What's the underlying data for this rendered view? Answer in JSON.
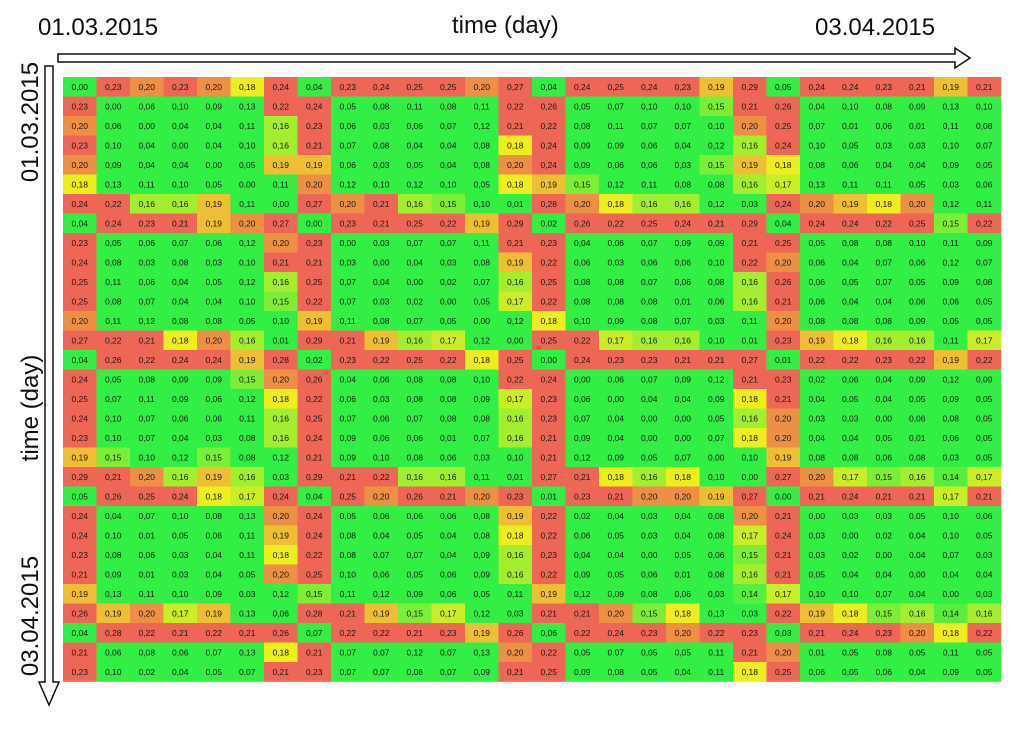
{
  "top_axis": {
    "start_label": "01.03.2015",
    "end_label": "03.04.2015",
    "title": "time (day)"
  },
  "left_axis": {
    "start_label": "01.03.2015",
    "end_label": "03.04.2015",
    "title": "time (day)"
  },
  "colors": {
    "low": "#33ee44",
    "mid": "#eeee22",
    "high": "#ee6655",
    "axis": "#111111"
  },
  "chart_data": {
    "type": "heatmap",
    "x_label": "time (day)",
    "y_label": "time (day)",
    "x_range": [
      "01.03.2015",
      "03.04.2015"
    ],
    "y_range": [
      "01.03.2015",
      "03.04.2015"
    ],
    "color_scale": {
      "min": 0.0,
      "max": 0.29
    },
    "cols": 28,
    "rows": 31,
    "values": [
      [
        "0,00",
        "0,23",
        "0,20",
        "0,23",
        "0,20",
        "0,18",
        "0,24",
        "0,04",
        "0,23",
        "0,24",
        "0,25",
        "0,25",
        "0,20",
        "0,27",
        "0,04",
        "0,24",
        "0,25",
        "0,24",
        "0,23",
        "0,19",
        "0,29",
        "0,05",
        "0,24",
        "0,24",
        "0,23",
        "0,21",
        "0,19",
        "0,21"
      ],
      [
        "0,23",
        "0,00",
        "0,06",
        "0,10",
        "0,09",
        "0,13",
        "0,22",
        "0,24",
        "0,05",
        "0,08",
        "0,11",
        "0,08",
        "0,11",
        "0,22",
        "0,26",
        "0,05",
        "0,07",
        "0,10",
        "0,10",
        "0,15",
        "0,21",
        "0,26",
        "0,04",
        "0,10",
        "0,08",
        "0,09",
        "0,13",
        "0,10"
      ],
      [
        "0,20",
        "0,06",
        "0,00",
        "0,04",
        "0,04",
        "0,11",
        "0,16",
        "0,23",
        "0,06",
        "0,03",
        "0,06",
        "0,07",
        "0,12",
        "0,21",
        "0,22",
        "0,08",
        "0,11",
        "0,07",
        "0,07",
        "0,10",
        "0,20",
        "0,25",
        "0,07",
        "0,01",
        "0,06",
        "0,01",
        "0,11",
        "0,08"
      ],
      [
        "0,23",
        "0,10",
        "0,04",
        "0,00",
        "0,04",
        "0,10",
        "0,16",
        "0,21",
        "0,07",
        "0,08",
        "0,04",
        "0,04",
        "0,08",
        "0,18",
        "0,24",
        "0,09",
        "0,09",
        "0,06",
        "0,04",
        "0,12",
        "0,16",
        "0,24",
        "0,10",
        "0,05",
        "0,03",
        "0,03",
        "0,10",
        "0,07"
      ],
      [
        "0,20",
        "0,09",
        "0,04",
        "0,04",
        "0,00",
        "0,05",
        "0,19",
        "0,19",
        "0,06",
        "0,03",
        "0,05",
        "0,04",
        "0,08",
        "0,20",
        "0,24",
        "0,09",
        "0,06",
        "0,06",
        "0,03",
        "0,15",
        "0,19",
        "0,18",
        "0,08",
        "0,06",
        "0,04",
        "0,04",
        "0,09",
        "0,05"
      ],
      [
        "0,18",
        "0,13",
        "0,11",
        "0,10",
        "0,05",
        "0,00",
        "0,11",
        "0,20",
        "0,12",
        "0,10",
        "0,12",
        "0,10",
        "0,05",
        "0,18",
        "0,19",
        "0,15",
        "0,12",
        "0,11",
        "0,08",
        "0,08",
        "0,16",
        "0,17",
        "0,13",
        "0,11",
        "0,11",
        "0,05",
        "0,03",
        "0,06"
      ],
      [
        "0,24",
        "0,22",
        "0,16",
        "0,16",
        "0,19",
        "0,11",
        "0,00",
        "0,27",
        "0,20",
        "0,21",
        "0,16",
        "0,15",
        "0,10",
        "0,01",
        "0,28",
        "0,20",
        "0,18",
        "0,16",
        "0,16",
        "0,12",
        "0,03",
        "0,24",
        "0,20",
        "0,19",
        "0,18",
        "0,20",
        "0,12",
        "0,11"
      ],
      [
        "0,04",
        "0,24",
        "0,23",
        "0,21",
        "0,19",
        "0,20",
        "0,27",
        "0,00",
        "0,23",
        "0,21",
        "0,25",
        "0,22",
        "0,19",
        "0,29",
        "0,02",
        "0,26",
        "0,22",
        "0,25",
        "0,24",
        "0,21",
        "0,29",
        "0,04",
        "0,24",
        "0,24",
        "0,22",
        "0,25",
        "0,15",
        "0,22"
      ],
      [
        "0,23",
        "0,05",
        "0,06",
        "0,07",
        "0,06",
        "0,12",
        "0,20",
        "0,23",
        "0,00",
        "0,03",
        "0,07",
        "0,07",
        "0,11",
        "0,21",
        "0,23",
        "0,04",
        "0,06",
        "0,07",
        "0,09",
        "0,09",
        "0,21",
        "0,25",
        "0,05",
        "0,08",
        "0,08",
        "0,10",
        "0,11",
        "0,09"
      ],
      [
        "0,24",
        "0,08",
        "0,03",
        "0,08",
        "0,03",
        "0,10",
        "0,21",
        "0,21",
        "0,03",
        "0,00",
        "0,04",
        "0,03",
        "0,08",
        "0,19",
        "0,22",
        "0,06",
        "0,03",
        "0,06",
        "0,06",
        "0,10",
        "0,22",
        "0,20",
        "0,06",
        "0,04",
        "0,07",
        "0,06",
        "0,12",
        "0,07"
      ],
      [
        "0,25",
        "0,11",
        "0,06",
        "0,04",
        "0,05",
        "0,12",
        "0,16",
        "0,25",
        "0,07",
        "0,04",
        "0,00",
        "0,02",
        "0,07",
        "0,16",
        "0,25",
        "0,08",
        "0,08",
        "0,07",
        "0,06",
        "0,08",
        "0,16",
        "0,26",
        "0,06",
        "0,05",
        "0,07",
        "0,05",
        "0,09",
        "0,08"
      ],
      [
        "0,25",
        "0,08",
        "0,07",
        "0,04",
        "0,04",
        "0,10",
        "0,15",
        "0,22",
        "0,07",
        "0,03",
        "0,02",
        "0,00",
        "0,05",
        "0,17",
        "0,22",
        "0,08",
        "0,08",
        "0,08",
        "0,01",
        "0,06",
        "0,16",
        "0,21",
        "0,06",
        "0,04",
        "0,04",
        "0,06",
        "0,06",
        "0,05"
      ],
      [
        "0,20",
        "0,11",
        "0,12",
        "0,08",
        "0,08",
        "0,05",
        "0,10",
        "0,19",
        "0,11",
        "0,08",
        "0,07",
        "0,05",
        "0,00",
        "0,12",
        "0,18",
        "0,10",
        "0,09",
        "0,08",
        "0,07",
        "0,03",
        "0,11",
        "0,20",
        "0,08",
        "0,08",
        "0,08",
        "0,09",
        "0,05",
        "0,05"
      ],
      [
        "0,27",
        "0,22",
        "0,21",
        "0,18",
        "0,20",
        "0,16",
        "0,01",
        "0,29",
        "0,21",
        "0,19",
        "0,16",
        "0,17",
        "0,12",
        "0,00",
        "0,25",
        "0,22",
        "0,17",
        "0,16",
        "0,16",
        "0,10",
        "0,01",
        "0,23",
        "0,19",
        "0,18",
        "0,16",
        "0,16",
        "0,11",
        "0,17"
      ],
      [
        "0,04",
        "0,26",
        "0,22",
        "0,24",
        "0,24",
        "0,19",
        "0,28",
        "0,02",
        "0,23",
        "0,22",
        "0,25",
        "0,22",
        "0,18",
        "0,25",
        "0,00",
        "0,24",
        "0,23",
        "0,23",
        "0,21",
        "0,21",
        "0,27",
        "0,01",
        "0,22",
        "0,22",
        "0,23",
        "0,22",
        "0,19",
        "0,22"
      ],
      [
        "0,24",
        "0,05",
        "0,08",
        "0,09",
        "0,09",
        "0,15",
        "0,20",
        "0,26",
        "0,04",
        "0,06",
        "0,08",
        "0,08",
        "0,10",
        "0,22",
        "0,24",
        "0,00",
        "0,06",
        "0,07",
        "0,09",
        "0,12",
        "0,21",
        "0,23",
        "0,02",
        "0,06",
        "0,04",
        "0,09",
        "0,12",
        "0,09"
      ],
      [
        "0,25",
        "0,07",
        "0,11",
        "0,09",
        "0,06",
        "0,12",
        "0,18",
        "0,22",
        "0,06",
        "0,03",
        "0,08",
        "0,08",
        "0,09",
        "0,17",
        "0,23",
        "0,06",
        "0,00",
        "0,04",
        "0,04",
        "0,09",
        "0,18",
        "0,21",
        "0,04",
        "0,05",
        "0,04",
        "0,05",
        "0,09",
        "0,05"
      ],
      [
        "0,24",
        "0,10",
        "0,07",
        "0,06",
        "0,06",
        "0,11",
        "0,16",
        "0,25",
        "0,07",
        "0,06",
        "0,07",
        "0,08",
        "0,08",
        "0,16",
        "0,23",
        "0,07",
        "0,04",
        "0,00",
        "0,00",
        "0,05",
        "0,16",
        "0,20",
        "0,03",
        "0,03",
        "0,00",
        "0,06",
        "0,08",
        "0,05"
      ],
      [
        "0,23",
        "0,10",
        "0,07",
        "0,04",
        "0,03",
        "0,08",
        "0,16",
        "0,24",
        "0,09",
        "0,06",
        "0,06",
        "0,01",
        "0,07",
        "0,16",
        "0,21",
        "0,09",
        "0,04",
        "0,00",
        "0,00",
        "0,07",
        "0,18",
        "0,20",
        "0,04",
        "0,04",
        "0,05",
        "0,01",
        "0,06",
        "0,05"
      ],
      [
        "0,19",
        "0,15",
        "0,10",
        "0,12",
        "0,15",
        "0,08",
        "0,12",
        "0,21",
        "0,09",
        "0,10",
        "0,08",
        "0,06",
        "0,03",
        "0,10",
        "0,21",
        "0,12",
        "0,09",
        "0,05",
        "0,07",
        "0,00",
        "0,10",
        "0,19",
        "0,08",
        "0,08",
        "0,06",
        "0,08",
        "0,03",
        "0,05"
      ],
      [
        "0,29",
        "0,21",
        "0,20",
        "0,16",
        "0,19",
        "0,16",
        "0,03",
        "0,29",
        "0,21",
        "0,22",
        "0,16",
        "0,16",
        "0,11",
        "0,01",
        "0,27",
        "0,21",
        "0,18",
        "0,16",
        "0,18",
        "0,10",
        "0,00",
        "0,27",
        "0,20",
        "0,17",
        "0,15",
        "0,16",
        "0,14",
        "0,17"
      ],
      [
        "0,05",
        "0,26",
        "0,25",
        "0,24",
        "0,18",
        "0,17",
        "0,24",
        "0,04",
        "0,25",
        "0,20",
        "0,26",
        "0,21",
        "0,20",
        "0,23",
        "0,01",
        "0,23",
        "0,21",
        "0,20",
        "0,20",
        "0,19",
        "0,27",
        "0,00",
        "0,21",
        "0,24",
        "0,21",
        "0,21",
        "0,17",
        "0,21"
      ],
      [
        "0,24",
        "0,04",
        "0,07",
        "0,10",
        "0,08",
        "0,13",
        "0,20",
        "0,24",
        "0,05",
        "0,06",
        "0,06",
        "0,06",
        "0,08",
        "0,19",
        "0,22",
        "0,02",
        "0,04",
        "0,03",
        "0,04",
        "0,08",
        "0,20",
        "0,21",
        "0,00",
        "0,03",
        "0,03",
        "0,05",
        "0,10",
        "0,06"
      ],
      [
        "0,24",
        "0,10",
        "0,01",
        "0,05",
        "0,06",
        "0,11",
        "0,19",
        "0,24",
        "0,08",
        "0,04",
        "0,05",
        "0,04",
        "0,08",
        "0,18",
        "0,22",
        "0,06",
        "0,05",
        "0,03",
        "0,04",
        "0,08",
        "0,17",
        "0,24",
        "0,03",
        "0,00",
        "0,02",
        "0,04",
        "0,10",
        "0,05"
      ],
      [
        "0,23",
        "0,08",
        "0,06",
        "0,03",
        "0,04",
        "0,11",
        "0,18",
        "0,22",
        "0,08",
        "0,07",
        "0,07",
        "0,04",
        "0,09",
        "0,16",
        "0,23",
        "0,04",
        "0,04",
        "0,00",
        "0,05",
        "0,06",
        "0,15",
        "0,21",
        "0,03",
        "0,02",
        "0,00",
        "0,04",
        "0,07",
        "0,03"
      ],
      [
        "0,21",
        "0,09",
        "0,01",
        "0,03",
        "0,04",
        "0,05",
        "0,20",
        "0,25",
        "0,10",
        "0,06",
        "0,05",
        "0,06",
        "0,09",
        "0,16",
        "0,22",
        "0,09",
        "0,05",
        "0,06",
        "0,01",
        "0,08",
        "0,16",
        "0,21",
        "0,05",
        "0,04",
        "0,04",
        "0,00",
        "0,04",
        "0,04"
      ],
      [
        "0,19",
        "0,13",
        "0,11",
        "0,10",
        "0,09",
        "0,03",
        "0,12",
        "0,15",
        "0,11",
        "0,12",
        "0,09",
        "0,06",
        "0,05",
        "0,11",
        "0,19",
        "0,12",
        "0,09",
        "0,08",
        "0,06",
        "0,03",
        "0,14",
        "0,17",
        "0,10",
        "0,10",
        "0,07",
        "0,04",
        "0,00",
        "0,03"
      ],
      [
        "0,26",
        "0,19",
        "0,20",
        "0,17",
        "0,19",
        "0,13",
        "0,06",
        "0,28",
        "0,21",
        "0,19",
        "0,15",
        "0,17",
        "0,12",
        "0,03",
        "0,21",
        "0,21",
        "0,20",
        "0,15",
        "0,18",
        "0,13",
        "0,03",
        "0,22",
        "0,19",
        "0,18",
        "0,15",
        "0,16",
        "0,14",
        "0,16"
      ],
      [
        "0,04",
        "0,28",
        "0,22",
        "0,21",
        "0,22",
        "0,21",
        "0,26",
        "0,07",
        "0,22",
        "0,22",
        "0,21",
        "0,23",
        "0,19",
        "0,26",
        "0,06",
        "0,22",
        "0,24",
        "0,23",
        "0,20",
        "0,22",
        "0,23",
        "0,03",
        "0,21",
        "0,24",
        "0,23",
        "0,20",
        "0,18",
        "0,22"
      ],
      [
        "0,21",
        "0,06",
        "0,08",
        "0,06",
        "0,07",
        "0,13",
        "0,18",
        "0,21",
        "0,07",
        "0,07",
        "0,12",
        "0,07",
        "0,13",
        "0,20",
        "0,22",
        "0,05",
        "0,07",
        "0,05",
        "0,05",
        "0,11",
        "0,21",
        "0,20",
        "0,01",
        "0,05",
        "0,08",
        "0,05",
        "0,11",
        "0,05"
      ],
      [
        "0,23",
        "0,10",
        "0,02",
        "0,04",
        "0,05",
        "0,07",
        "0,21",
        "0,23",
        "0,07",
        "0,07",
        "0,08",
        "0,07",
        "0,09",
        "0,21",
        "0,25",
        "0,09",
        "0,08",
        "0,05",
        "0,04",
        "0,11",
        "0,18",
        "0,25",
        "0,06",
        "0,05",
        "0,06",
        "0,04",
        "0,09",
        "0,05"
      ]
    ]
  }
}
